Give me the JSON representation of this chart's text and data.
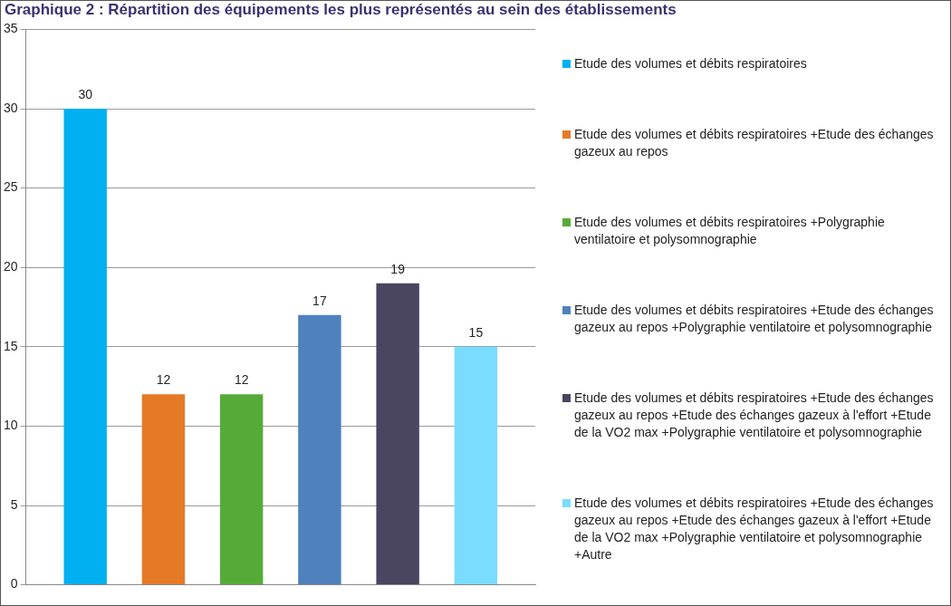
{
  "chart_data": {
    "type": "bar",
    "title": "Graphique 2 : Répartition des équipements les plus représentés au sein des établissements",
    "categories": [
      null
    ],
    "series": [
      {
        "name": "Etude des volumes et débits respiratoires",
        "color": "#00b0f0",
        "values": [
          30
        ]
      },
      {
        "name": "Etude des volumes et débits respiratoires +Etude des échanges gazeux au repos",
        "color": "#e57a26",
        "values": [
          12
        ]
      },
      {
        "name": "Etude des volumes et débits respiratoires +Polygraphie ventilatoire et polysomnographie",
        "color": "#56ab38",
        "values": [
          12
        ]
      },
      {
        "name": "Etude des volumes et débits respiratoires +Etude des échanges gazeux au repos +Polygraphie ventilatoire et polysomnographie",
        "color": "#4f81bd",
        "values": [
          17
        ]
      },
      {
        "name": "Etude des volumes et débits respiratoires +Etude des échanges gazeux au repos +Etude des échanges gazeux à l'effort +Etude de la VO2 max +Polygraphie ventilatoire et polysomnographie",
        "color": "#4a4560",
        "values": [
          19
        ]
      },
      {
        "name": "Etude des volumes et débits respiratoires +Etude des échanges gazeux au repos +Etude des échanges gazeux à l'effort +Etude de la VO2 max +Polygraphie ventilatoire et polysomnographie +Autre",
        "color": "#7adcff",
        "values": [
          15
        ]
      }
    ],
    "ylim": [
      0,
      35
    ],
    "yticks": [
      0,
      5,
      10,
      15,
      20,
      25,
      30,
      35
    ],
    "grid": "y",
    "legend": "right",
    "data_labels": true
  }
}
